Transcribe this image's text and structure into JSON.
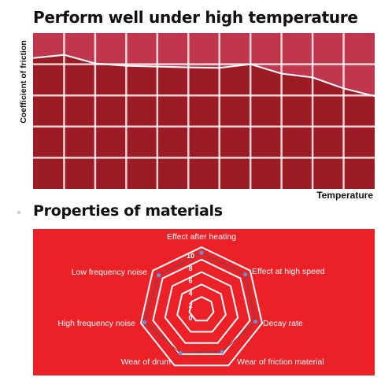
{
  "chart_data": [
    {
      "type": "area",
      "title": "Perform well under high temperature",
      "xlabel": "Temperature",
      "ylabel": "Coefficient of friction",
      "x": [
        0,
        1,
        2,
        3,
        4,
        5,
        6,
        7,
        8,
        9,
        10,
        11
      ],
      "series": [
        {
          "values": [
            0.84,
            0.86,
            0.805,
            0.79,
            0.785,
            0.78,
            0.777,
            0.8,
            0.74,
            0.715,
            0.645,
            0.595
          ]
        }
      ],
      "xlim": [
        0,
        11
      ],
      "ylim": [
        0,
        1
      ],
      "grid": true,
      "colors": {
        "background": "#c0364d",
        "fill": "#9c1c26",
        "grid": "#ffffff",
        "line": "#ffffff"
      }
    },
    {
      "type": "radar",
      "title": "Properties of materials",
      "axes": [
        "Effect after heating",
        "Effect at high speed",
        "Decay rate",
        "Wear of friction material",
        "Wear of drum",
        "High frequency noise",
        "Low frequency noise"
      ],
      "ticks": [
        "0",
        "2",
        "4",
        "6",
        "8",
        "10"
      ],
      "range": [
        0,
        10
      ],
      "series": [
        {
          "values": [
            9.1,
            9.0,
            8.9,
            7.6,
            7.8,
            9.4,
            8.8
          ]
        }
      ],
      "colors": {
        "background": "#ec2027",
        "grid": "#ffffff",
        "line": "#555555",
        "point": "#6e8fd6"
      }
    }
  ]
}
